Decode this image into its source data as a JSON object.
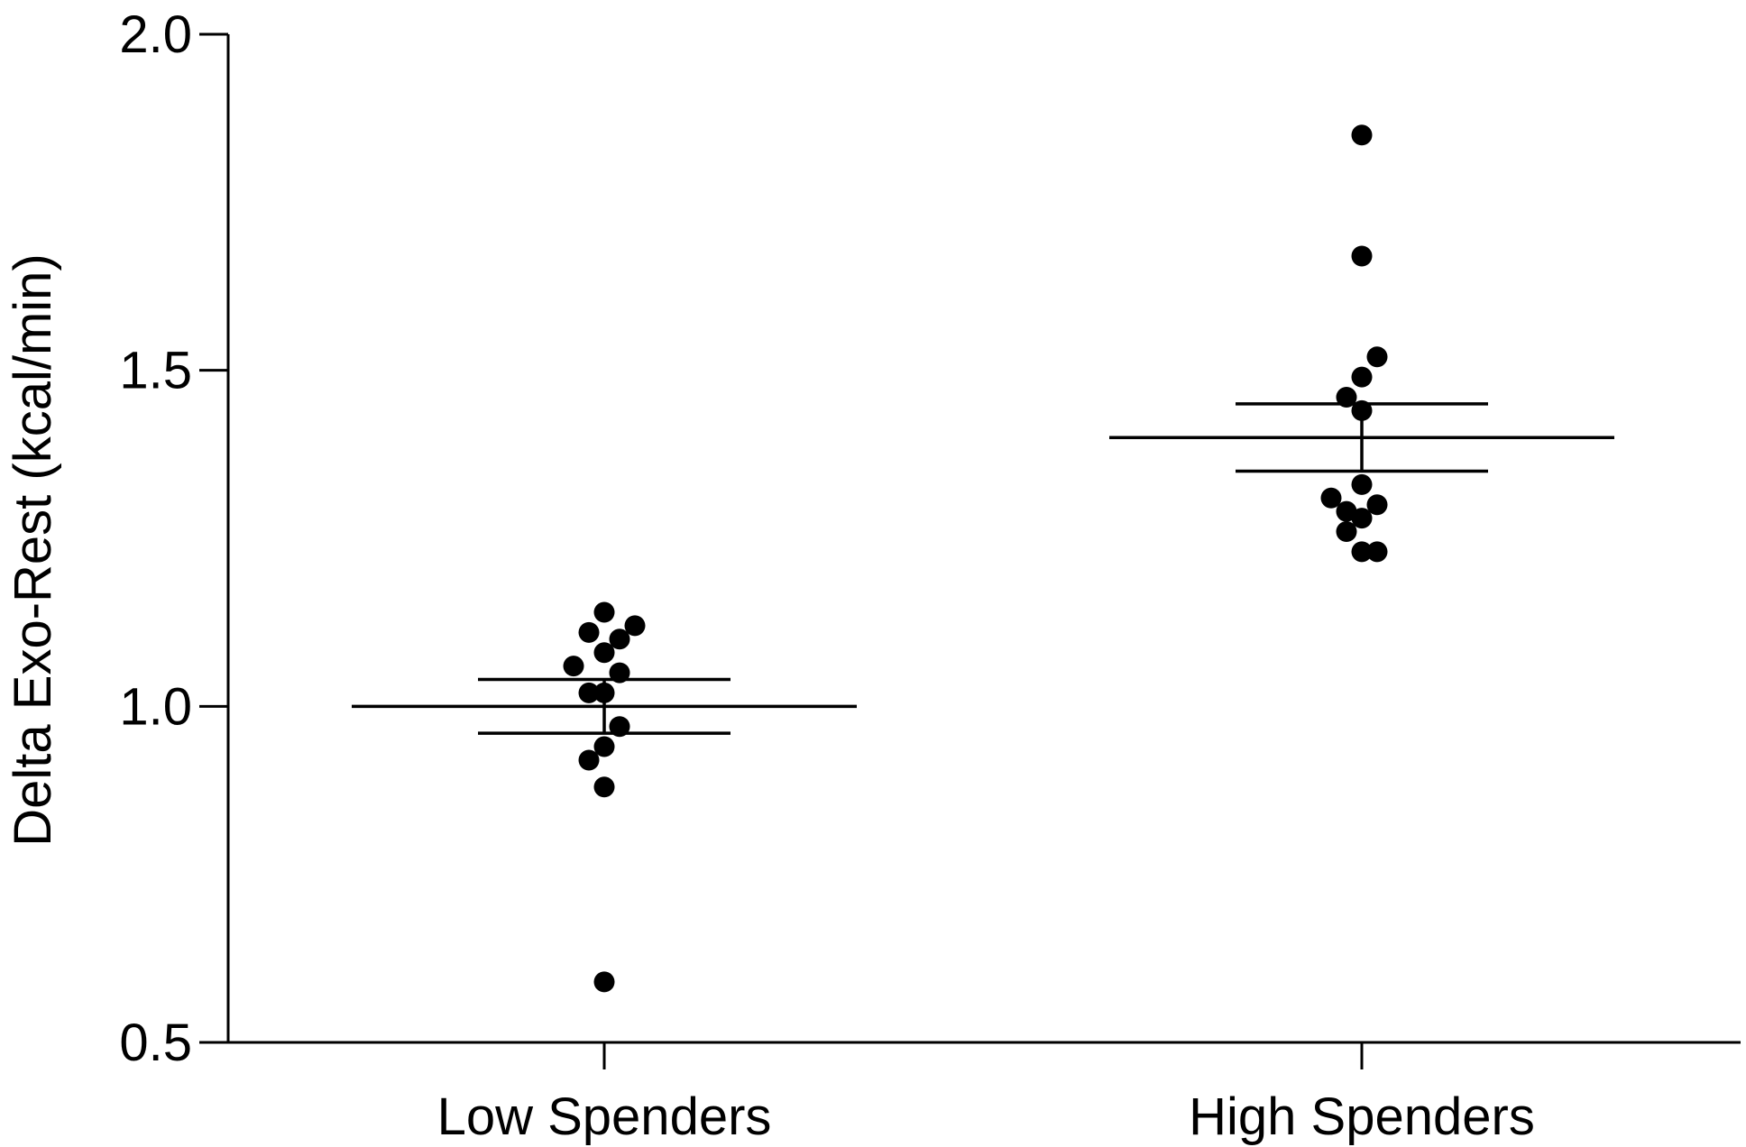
{
  "chart_data": {
    "type": "scatter",
    "title": "",
    "xlabel": "",
    "ylabel": "Delta Exo-Rest  (kcal/min)",
    "categories": [
      "Low Spenders",
      "High Spenders"
    ],
    "ylim": [
      0.5,
      2.0
    ],
    "yticks": [
      "0.5",
      "1.0",
      "1.5",
      "2.0"
    ],
    "grid": false,
    "legend": "none",
    "colors": {
      "points": "#000000",
      "lines": "#000000"
    },
    "groups": [
      {
        "category": "Low Spenders",
        "mean": 1.0,
        "sem_upper": 1.04,
        "sem_lower": 0.96,
        "points": [
          {
            "offset": 0.0,
            "y": 1.14
          },
          {
            "offset": -0.5,
            "y": 1.11
          },
          {
            "offset": 1.0,
            "y": 1.12
          },
          {
            "offset": 0.0,
            "y": 1.08
          },
          {
            "offset": 0.5,
            "y": 1.1
          },
          {
            "offset": -1.0,
            "y": 1.06
          },
          {
            "offset": 0.5,
            "y": 1.05
          },
          {
            "offset": -0.5,
            "y": 1.02
          },
          {
            "offset": 0.0,
            "y": 1.02
          },
          {
            "offset": 0.5,
            "y": 0.97
          },
          {
            "offset": 0.0,
            "y": 0.94
          },
          {
            "offset": -0.5,
            "y": 0.92
          },
          {
            "offset": 0.0,
            "y": 0.88
          },
          {
            "offset": 0.0,
            "y": 0.59
          }
        ]
      },
      {
        "category": "High Spenders",
        "mean": 1.4,
        "sem_upper": 1.45,
        "sem_lower": 1.35,
        "points": [
          {
            "offset": 0.0,
            "y": 1.85
          },
          {
            "offset": 0.0,
            "y": 1.67
          },
          {
            "offset": 0.5,
            "y": 1.52
          },
          {
            "offset": 0.0,
            "y": 1.49
          },
          {
            "offset": -0.5,
            "y": 1.46
          },
          {
            "offset": 0.0,
            "y": 1.44
          },
          {
            "offset": 0.0,
            "y": 1.33
          },
          {
            "offset": -1.0,
            "y": 1.31
          },
          {
            "offset": 0.5,
            "y": 1.3
          },
          {
            "offset": -0.5,
            "y": 1.29
          },
          {
            "offset": 0.0,
            "y": 1.28
          },
          {
            "offset": -0.5,
            "y": 1.26
          },
          {
            "offset": 0.0,
            "y": 1.23
          },
          {
            "offset": 0.5,
            "y": 1.23
          }
        ]
      }
    ]
  }
}
